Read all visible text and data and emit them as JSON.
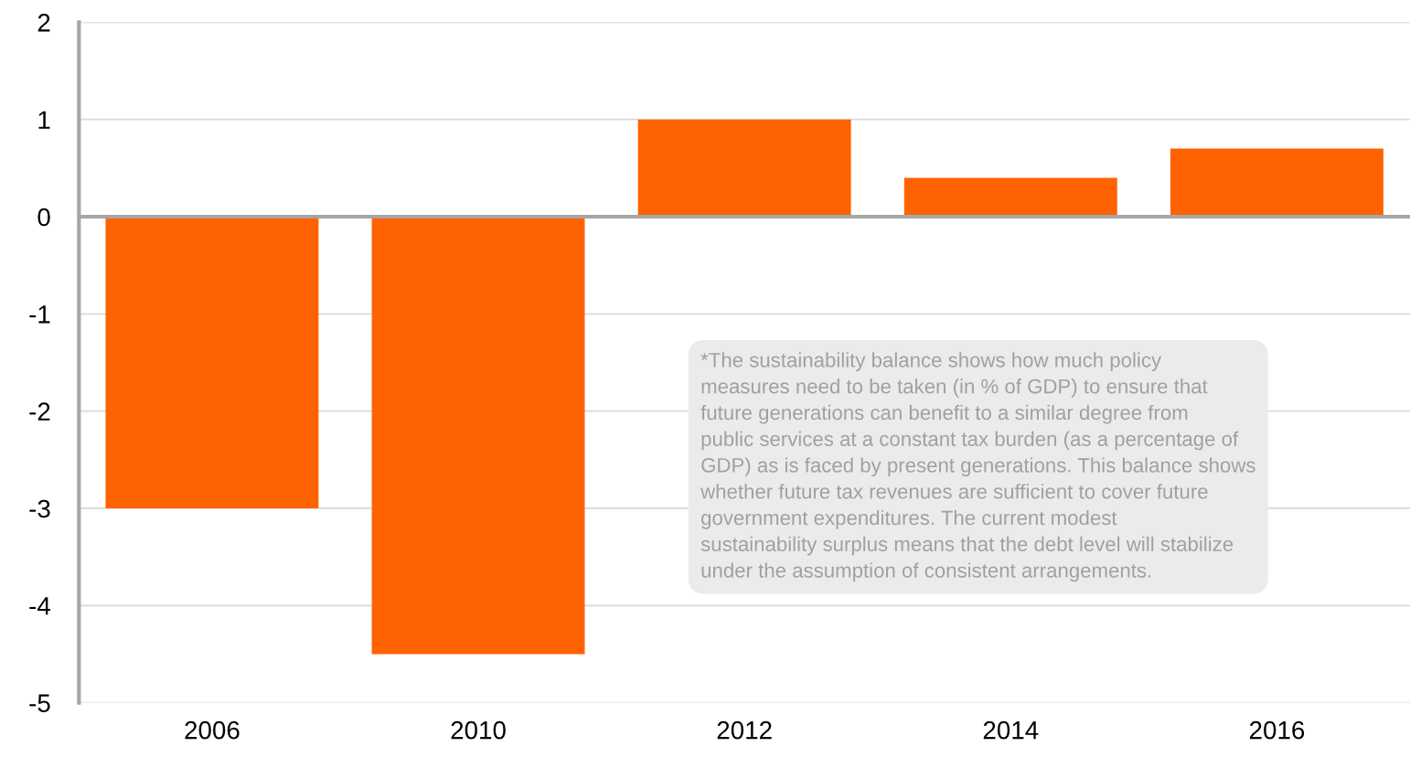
{
  "chart_data": {
    "type": "bar",
    "categories": [
      "2006",
      "2010",
      "2012",
      "2014",
      "2016"
    ],
    "values": [
      -3,
      -4.5,
      1,
      0.4,
      0.7
    ],
    "color": "#ff6200",
    "ylim": [
      -5,
      2
    ],
    "yticks": [
      -5,
      -4,
      -3,
      -2,
      -1,
      0,
      1,
      2
    ],
    "grid": "y",
    "ref_lines": [
      {
        "axis": "y",
        "value": 0,
        "color": "#a6a6a6"
      }
    ],
    "annotations": [
      "*The sustainability balance shows how much policy\nmeasures need to be taken (in % of GDP) to ensure that\nfuture generations can benefit to a similar degree from\npublic services at a constant tax burden (as a percentage of\nGDP) as is faced by present generations. This balance shows\nwhether future tax revenues are sufficient to cover future\ngovernment expenditures. The current modest\nsustainability surplus means that the debt level will stabilize\nunder the assumption of consistent arrangements."
    ]
  }
}
